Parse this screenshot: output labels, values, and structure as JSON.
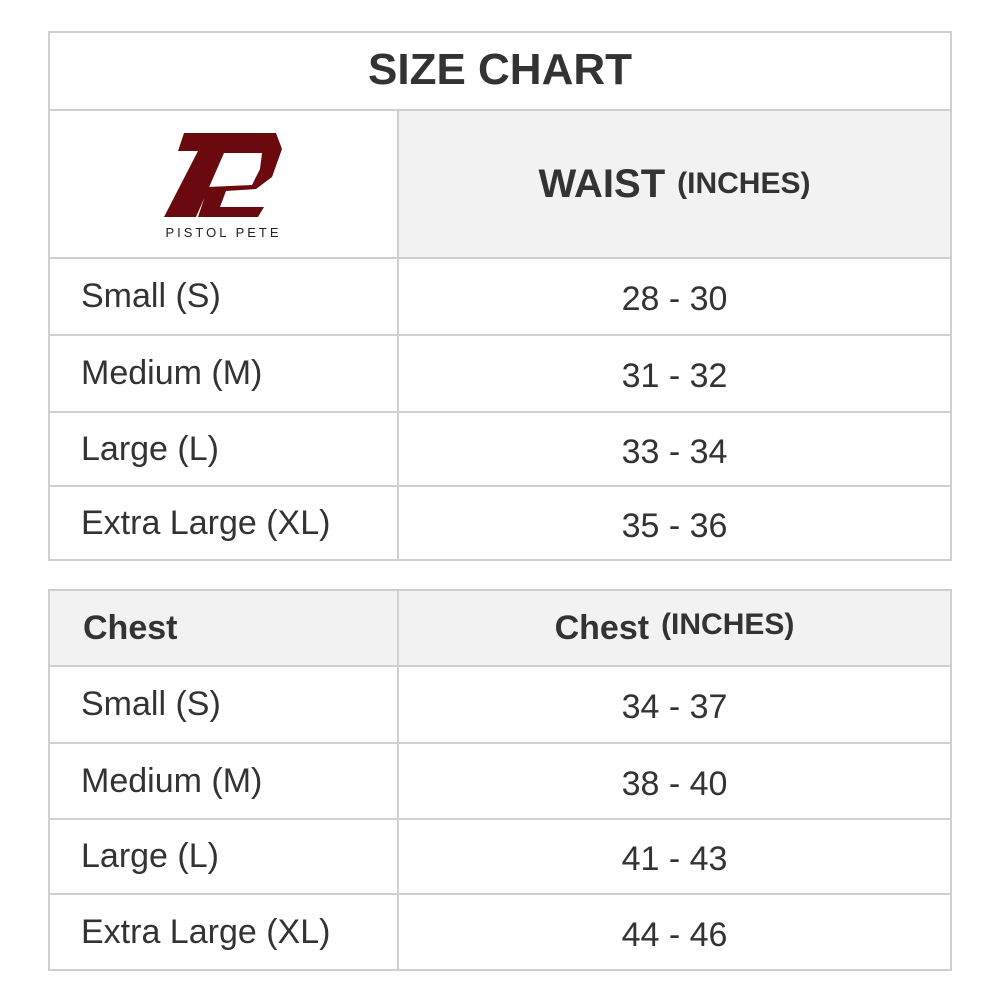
{
  "title": "SIZE CHART",
  "brand": {
    "name": "PISTOL PETE",
    "logo_color": "#6b0a0e"
  },
  "waist_table": {
    "header": {
      "label": "WAIST",
      "unit": "(INCHES)"
    },
    "rows": [
      {
        "size": "Small (S)",
        "value": "28 - 30"
      },
      {
        "size": "Medium (M)",
        "value": "31 - 32"
      },
      {
        "size": "Large (L)",
        "value": "33 - 34"
      },
      {
        "size": "Extra Large (XL)",
        "value": "35 - 36"
      }
    ]
  },
  "chest_table": {
    "header": {
      "col1": "Chest",
      "label": "Chest",
      "unit": "(INCHES)"
    },
    "rows": [
      {
        "size": "Small (S)",
        "value": "34 - 37"
      },
      {
        "size": "Medium (M)",
        "value": "38 - 40"
      },
      {
        "size": "Large (L)",
        "value": "41 - 43"
      },
      {
        "size": "Extra Large (XL)",
        "value": "44 - 46"
      }
    ]
  }
}
